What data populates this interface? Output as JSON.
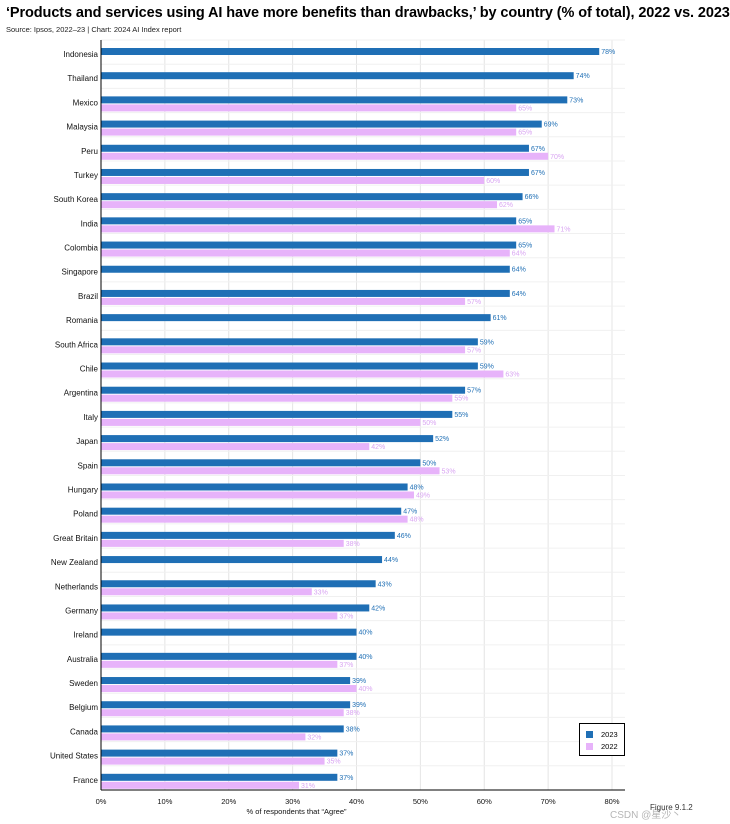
{
  "chart_data": {
    "type": "bar",
    "orientation": "horizontal",
    "title": "‘Products and services using AI have more benefits than drawbacks,’ by country (% of total), 2022 vs. 2023",
    "source": "Source: Ipsos, 2022–23 | Chart: 2024 AI Index report",
    "xlabel": "% of respondents that “Agree”",
    "xlim": [
      0,
      80
    ],
    "xticks": [
      "0%",
      "10%",
      "20%",
      "30%",
      "40%",
      "50%",
      "60%",
      "70%",
      "80%"
    ],
    "categories": [
      "Indonesia",
      "Thailand",
      "Mexico",
      "Malaysia",
      "Peru",
      "Turkey",
      "South Korea",
      "India",
      "Colombia",
      "Singapore",
      "Brazil",
      "Romania",
      "South Africa",
      "Chile",
      "Argentina",
      "Italy",
      "Japan",
      "Spain",
      "Hungary",
      "Poland",
      "Great Britain",
      "New Zealand",
      "Netherlands",
      "Germany",
      "Ireland",
      "Australia",
      "Sweden",
      "Belgium",
      "Canada",
      "United States",
      "France"
    ],
    "series": [
      {
        "name": "2023",
        "color": "#1f6fb5",
        "values": [
          78,
          74,
          73,
          69,
          67,
          67,
          66,
          65,
          65,
          64,
          64,
          61,
          59,
          59,
          57,
          55,
          52,
          50,
          48,
          47,
          46,
          44,
          43,
          42,
          40,
          40,
          39,
          39,
          38,
          37,
          37
        ]
      },
      {
        "name": "2022",
        "color": "#e7b3fa",
        "values": [
          null,
          null,
          65,
          65,
          70,
          60,
          62,
          71,
          64,
          null,
          57,
          null,
          57,
          63,
          55,
          50,
          42,
          53,
          49,
          48,
          38,
          null,
          33,
          37,
          null,
          37,
          40,
          38,
          32,
          35,
          31
        ]
      }
    ],
    "legend": [
      "2023",
      "2022"
    ],
    "legend_position": "bottom-right",
    "grid": true
  },
  "figure_note": "Figure 9.1.2",
  "watermark": "CSDN @星沙丶"
}
